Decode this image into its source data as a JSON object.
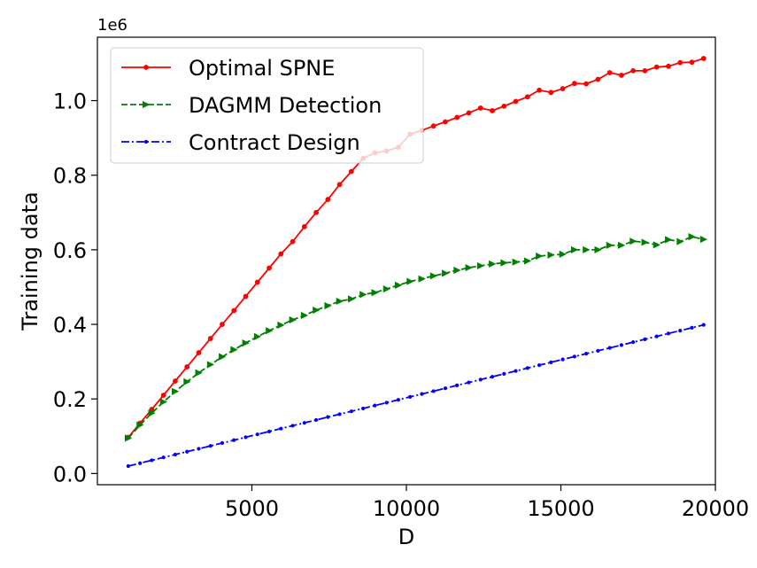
{
  "chart_data": {
    "type": "line",
    "title": "",
    "xlabel": "D",
    "ylabel": "Training data",
    "y_offset_label": "1e6",
    "xlim": [
      0,
      20000
    ],
    "ylim": [
      -0.03,
      1.17
    ],
    "x_ticks": [
      5000,
      10000,
      15000,
      20000
    ],
    "x_tick_labels": [
      "5000",
      "10000",
      "15000",
      "20000"
    ],
    "y_ticks": [
      0.0,
      0.2,
      0.4,
      0.6,
      0.8,
      1.0
    ],
    "y_tick_labels": [
      "0.0",
      "0.2",
      "0.4",
      "0.6",
      "0.8",
      "1.0"
    ],
    "grid": false,
    "legend_position": "top-left",
    "x": [
      1000,
      1380,
      1760,
      2140,
      2520,
      2900,
      3280,
      3660,
      4040,
      4420,
      4800,
      5180,
      5560,
      5940,
      6320,
      6700,
      7080,
      7460,
      7840,
      8220,
      8600,
      8980,
      9360,
      9740,
      10120,
      10500,
      10880,
      11260,
      11640,
      12020,
      12400,
      12780,
      13160,
      13540,
      13920,
      14300,
      14680,
      15060,
      15440,
      15820,
      16200,
      16580,
      16960,
      17340,
      17720,
      18100,
      18480,
      18860,
      19240,
      19620
    ],
    "series": [
      {
        "name": "Optimal SPNE",
        "color": "#ff0000",
        "line_style": "solid",
        "marker": "circle",
        "values": [
          0.097,
          0.135,
          0.172,
          0.21,
          0.248,
          0.286,
          0.324,
          0.362,
          0.4,
          0.437,
          0.475,
          0.513,
          0.551,
          0.589,
          0.622,
          0.662,
          0.7,
          0.735,
          0.775,
          0.81,
          0.845,
          0.86,
          0.865,
          0.875,
          0.91,
          0.92,
          0.932,
          0.943,
          0.955,
          0.967,
          0.98,
          0.973,
          0.985,
          0.998,
          1.01,
          1.028,
          1.022,
          1.032,
          1.046,
          1.045,
          1.057,
          1.075,
          1.068,
          1.08,
          1.08,
          1.09,
          1.092,
          1.102,
          1.103,
          1.113
        ]
      },
      {
        "name": "DAGMM Detection",
        "color": "#008000",
        "line_style": "dashed",
        "marker": "triangle-right",
        "values": [
          0.095,
          0.13,
          0.162,
          0.192,
          0.22,
          0.246,
          0.27,
          0.292,
          0.313,
          0.332,
          0.35,
          0.367,
          0.383,
          0.398,
          0.412,
          0.424,
          0.438,
          0.45,
          0.462,
          0.468,
          0.48,
          0.485,
          0.495,
          0.505,
          0.515,
          0.522,
          0.53,
          0.537,
          0.545,
          0.552,
          0.557,
          0.562,
          0.565,
          0.567,
          0.57,
          0.583,
          0.586,
          0.588,
          0.6,
          0.6,
          0.6,
          0.612,
          0.612,
          0.623,
          0.62,
          0.613,
          0.627,
          0.622,
          0.635,
          0.628
        ]
      },
      {
        "name": "Contract Design",
        "color": "#0000ff",
        "line_style": "dashdot",
        "marker": "small-circle",
        "values": [
          0.02,
          0.0277,
          0.0355,
          0.0432,
          0.0509,
          0.0586,
          0.0664,
          0.0741,
          0.0818,
          0.0895,
          0.0973,
          0.105,
          0.1127,
          0.1205,
          0.1282,
          0.1359,
          0.1436,
          0.1514,
          0.1591,
          0.1668,
          0.1745,
          0.1823,
          0.19,
          0.1977,
          0.2055,
          0.2132,
          0.2209,
          0.2286,
          0.2364,
          0.2441,
          0.2518,
          0.2595,
          0.2673,
          0.275,
          0.2827,
          0.2905,
          0.2982,
          0.3059,
          0.3136,
          0.3214,
          0.3291,
          0.3368,
          0.3445,
          0.3523,
          0.36,
          0.3677,
          0.3755,
          0.3832,
          0.3909,
          0.3986
        ]
      }
    ]
  }
}
